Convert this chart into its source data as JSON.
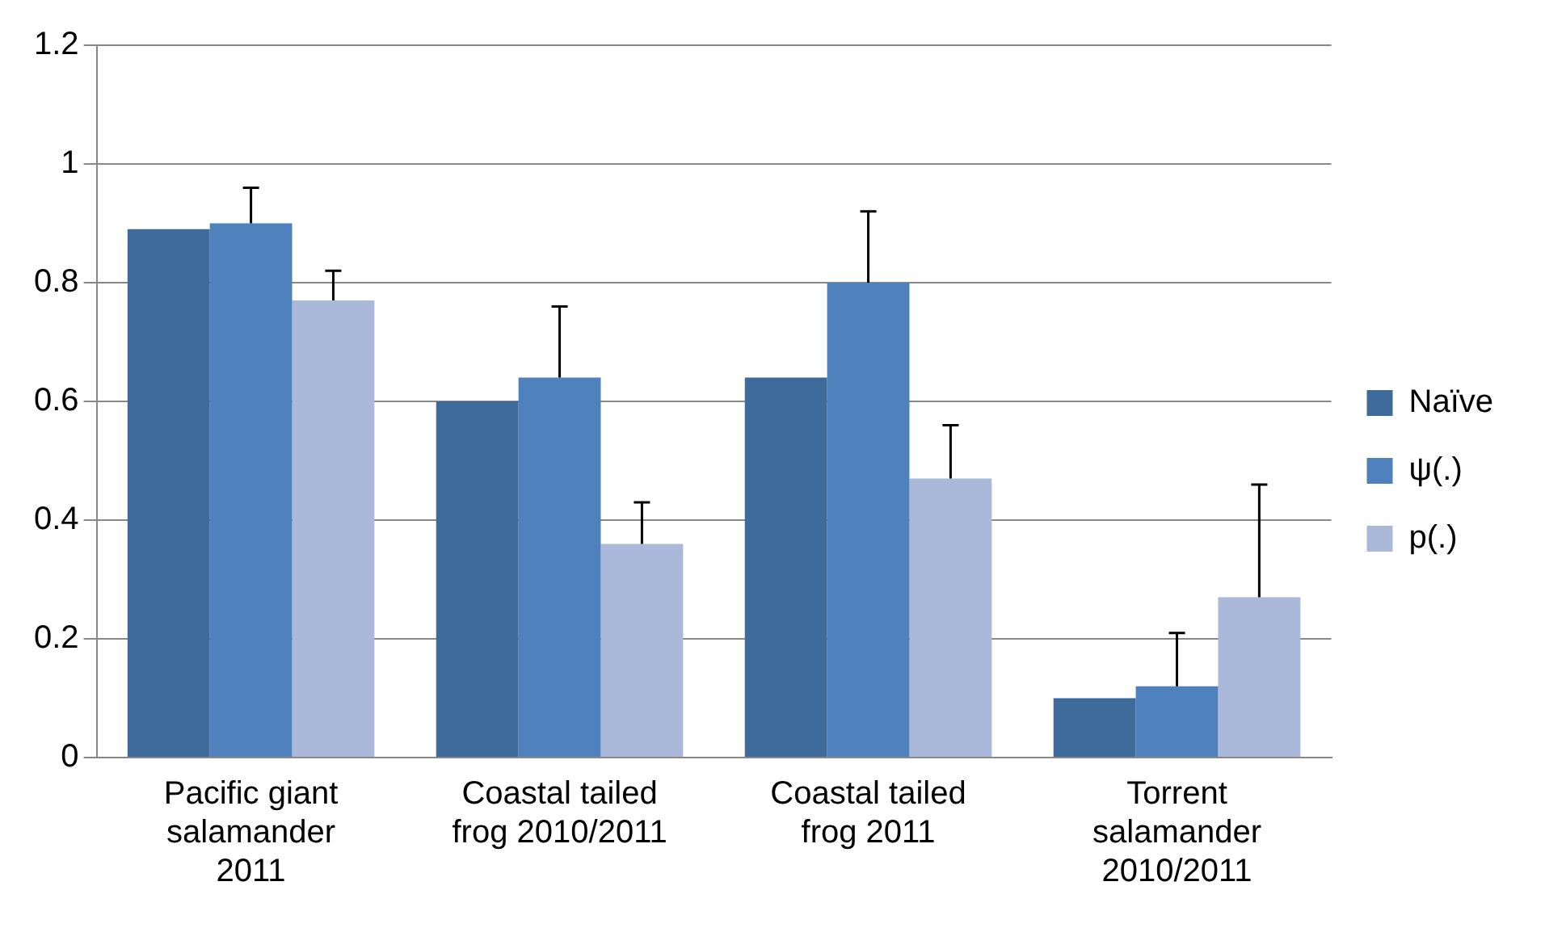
{
  "chart_data": {
    "type": "bar",
    "categories": [
      "Pacific giant salamander 2011",
      "Coastal tailed frog 2010/2011",
      "Coastal tailed frog 2011",
      "Torrent salamander 2010/2011"
    ],
    "series": [
      {
        "name": "Naïve",
        "color": "#3f6a9c",
        "values": [
          0.89,
          0.6,
          0.64,
          0.1
        ]
      },
      {
        "name": "ψ(.)",
        "color": "#4f81bd",
        "values": [
          0.9,
          0.64,
          0.8,
          0.12
        ],
        "errors": [
          [
            0.9,
            0.96
          ],
          [
            0.64,
            0.76
          ],
          [
            0.8,
            0.92
          ],
          [
            0.12,
            0.21
          ]
        ]
      },
      {
        "name": "p(.)",
        "color": "#aab9d9",
        "values": [
          0.77,
          0.36,
          0.47,
          0.27
        ],
        "errors": [
          [
            0.77,
            0.82
          ],
          [
            0.36,
            0.43
          ],
          [
            0.47,
            0.56
          ],
          [
            0.27,
            0.46
          ]
        ]
      }
    ],
    "ylim": [
      0,
      1.2
    ],
    "yticks": [
      0,
      0.2,
      0.4,
      0.6,
      0.8,
      1,
      1.2
    ],
    "grid": "y",
    "legend": "right"
  }
}
